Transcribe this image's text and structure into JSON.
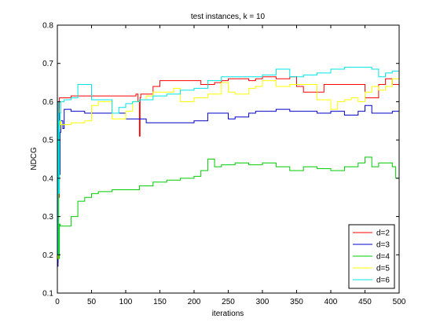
{
  "chart_data": {
    "type": "line",
    "title": "test instances, k = 10",
    "xlabel": "iterations",
    "ylabel": "NDCG",
    "xlim": [
      0,
      500
    ],
    "ylim": [
      0.1,
      0.8
    ],
    "xticks": [
      0,
      50,
      100,
      150,
      200,
      250,
      300,
      350,
      400,
      450,
      500
    ],
    "yticks": [
      0.1,
      0.2,
      0.3,
      0.4,
      0.5,
      0.6,
      0.7,
      0.8
    ],
    "grid": false,
    "legend_position": "bottom-right",
    "series": [
      {
        "name": "d=2",
        "color": "#ff0000",
        "x": [
          0,
          1,
          2,
          3,
          4,
          5,
          10,
          20,
          40,
          60,
          80,
          100,
          110,
          115,
          118,
          120,
          121,
          122,
          125,
          140,
          150,
          160,
          170,
          180,
          190,
          200,
          210,
          220,
          230,
          240,
          250,
          260,
          280,
          290,
          300,
          320,
          340,
          350,
          360,
          370,
          380,
          390,
          400,
          420,
          440,
          450,
          460,
          470,
          480,
          490,
          500
        ],
        "y": [
          0.18,
          0.6,
          0.35,
          0.61,
          0.61,
          0.61,
          0.61,
          0.615,
          0.615,
          0.615,
          0.615,
          0.615,
          0.615,
          0.62,
          0.6,
          0.51,
          0.61,
          0.62,
          0.62,
          0.64,
          0.655,
          0.655,
          0.655,
          0.655,
          0.655,
          0.655,
          0.645,
          0.645,
          0.65,
          0.655,
          0.66,
          0.66,
          0.655,
          0.66,
          0.665,
          0.66,
          0.665,
          0.64,
          0.625,
          0.625,
          0.625,
          0.645,
          0.645,
          0.645,
          0.645,
          0.61,
          0.61,
          0.645,
          0.66,
          0.645,
          0.645
        ]
      },
      {
        "name": "d=3",
        "color": "#0000cc",
        "x": [
          0,
          1,
          2,
          3,
          4,
          5,
          8,
          10,
          15,
          20,
          40,
          60,
          80,
          100,
          120,
          130,
          140,
          160,
          180,
          190,
          200,
          220,
          230,
          240,
          250,
          260,
          280,
          290,
          300,
          320,
          340,
          360,
          380,
          400,
          420,
          440,
          450,
          460,
          470,
          490,
          500
        ],
        "y": [
          0.17,
          0.55,
          0.57,
          0.41,
          0.52,
          0.55,
          0.53,
          0.58,
          0.58,
          0.575,
          0.57,
          0.57,
          0.57,
          0.555,
          0.555,
          0.545,
          0.545,
          0.545,
          0.545,
          0.545,
          0.55,
          0.57,
          0.57,
          0.57,
          0.555,
          0.56,
          0.57,
          0.575,
          0.575,
          0.58,
          0.575,
          0.575,
          0.57,
          0.575,
          0.565,
          0.575,
          0.59,
          0.57,
          0.57,
          0.575,
          0.575
        ]
      },
      {
        "name": "d=4",
        "color": "#00cc00",
        "x": [
          0,
          1,
          2,
          3,
          4,
          5,
          8,
          10,
          20,
          30,
          40,
          50,
          60,
          80,
          100,
          120,
          140,
          160,
          180,
          200,
          210,
          220,
          230,
          240,
          260,
          280,
          300,
          320,
          340,
          360,
          380,
          400,
          420,
          440,
          450,
          460,
          470,
          480,
          490,
          495,
          500
        ],
        "y": [
          0.2,
          0.41,
          0.19,
          0.28,
          0.275,
          0.275,
          0.275,
          0.275,
          0.3,
          0.34,
          0.35,
          0.36,
          0.365,
          0.37,
          0.37,
          0.38,
          0.39,
          0.395,
          0.4,
          0.405,
          0.42,
          0.45,
          0.43,
          0.435,
          0.44,
          0.435,
          0.44,
          0.43,
          0.42,
          0.43,
          0.425,
          0.42,
          0.43,
          0.44,
          0.455,
          0.43,
          0.44,
          0.44,
          0.43,
          0.4,
          0.435
        ]
      },
      {
        "name": "d=5",
        "color": "#ffff00",
        "x": [
          0,
          1,
          2,
          3,
          4,
          5,
          10,
          20,
          40,
          50,
          60,
          80,
          100,
          110,
          120,
          130,
          140,
          160,
          170,
          180,
          200,
          220,
          240,
          250,
          260,
          280,
          290,
          300,
          320,
          340,
          360,
          380,
          400,
          410,
          420,
          430,
          440,
          450,
          460,
          470,
          480,
          490,
          500
        ],
        "y": [
          0.19,
          0.58,
          0.38,
          0.53,
          0.55,
          0.54,
          0.54,
          0.545,
          0.55,
          0.59,
          0.6,
          0.555,
          0.575,
          0.6,
          0.605,
          0.615,
          0.625,
          0.625,
          0.635,
          0.6,
          0.61,
          0.62,
          0.65,
          0.625,
          0.62,
          0.635,
          0.64,
          0.655,
          0.64,
          0.645,
          0.645,
          0.605,
          0.58,
          0.6,
          0.605,
          0.61,
          0.6,
          0.625,
          0.64,
          0.63,
          0.64,
          0.66,
          0.655
        ]
      },
      {
        "name": "d=6",
        "color": "#00e5e5",
        "x": [
          0,
          1,
          2,
          3,
          4,
          5,
          10,
          20,
          30,
          40,
          50,
          60,
          80,
          90,
          100,
          110,
          120,
          140,
          160,
          180,
          200,
          220,
          240,
          260,
          280,
          300,
          320,
          340,
          360,
          380,
          400,
          420,
          440,
          460,
          470,
          480,
          490,
          500
        ],
        "y": [
          0.2,
          0.6,
          0.36,
          0.55,
          0.57,
          0.6,
          0.605,
          0.61,
          0.645,
          0.645,
          0.605,
          0.605,
          0.57,
          0.585,
          0.595,
          0.6,
          0.605,
          0.615,
          0.62,
          0.63,
          0.635,
          0.655,
          0.665,
          0.665,
          0.665,
          0.67,
          0.685,
          0.665,
          0.67,
          0.675,
          0.685,
          0.69,
          0.69,
          0.685,
          0.665,
          0.675,
          0.68,
          0.68
        ]
      }
    ]
  }
}
